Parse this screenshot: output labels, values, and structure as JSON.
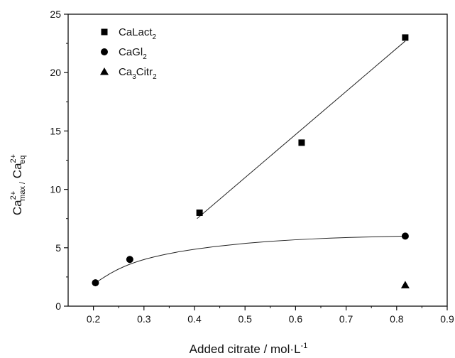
{
  "chart_data": {
    "type": "scatter",
    "xlabel": "Added citrate / mol·L",
    "xlabel_superscript": "-1",
    "ylabel_parts": {
      "base1": "Ca",
      "sup1": "2+",
      "sub1": "max /",
      "base2": " Ca",
      "sup2": "2+",
      "sub2": "eq"
    },
    "xlim": [
      0.15,
      0.9
    ],
    "ylim": [
      0,
      25
    ],
    "xticks": [
      0.2,
      0.3,
      0.4,
      0.5,
      0.6,
      0.7,
      0.8,
      0.9
    ],
    "xtick_labels": [
      "0.2",
      "0.3",
      "0.4",
      "0.5",
      "0.6",
      "0.7",
      "0.8",
      "0.9"
    ],
    "yticks": [
      0,
      5,
      10,
      15,
      20,
      25
    ],
    "ytick_labels": [
      "0",
      "5",
      "10",
      "15",
      "20",
      "25"
    ],
    "grid": false,
    "legend_position": "top-left",
    "series": [
      {
        "name_base": "CaLact",
        "name_sub": "2",
        "marker": "square",
        "points": [
          [
            0.41,
            8
          ],
          [
            0.612,
            14
          ],
          [
            0.817,
            23
          ]
        ],
        "fit": {
          "kind": "linear",
          "points": [
            [
              0.405,
              7.5
            ],
            [
              0.817,
              22.7
            ]
          ]
        }
      },
      {
        "name_base": "CaGl",
        "name_sub": "2",
        "marker": "circle",
        "points": [
          [
            0.204,
            2
          ],
          [
            0.272,
            4
          ],
          [
            0.817,
            6
          ]
        ],
        "fit": {
          "kind": "curve",
          "points": [
            [
              0.204,
              2.0
            ],
            [
              0.24,
              3.0
            ],
            [
              0.28,
              3.75
            ],
            [
              0.33,
              4.35
            ],
            [
              0.4,
              4.9
            ],
            [
              0.5,
              5.4
            ],
            [
              0.6,
              5.7
            ],
            [
              0.7,
              5.88
            ],
            [
              0.817,
              6.0
            ]
          ]
        }
      },
      {
        "name_base": "Ca",
        "name_sub": "3",
        "name_tail": "Citr",
        "name_sub2": "2",
        "marker": "triangle",
        "points": [
          [
            0.817,
            1.8
          ]
        ]
      }
    ]
  }
}
